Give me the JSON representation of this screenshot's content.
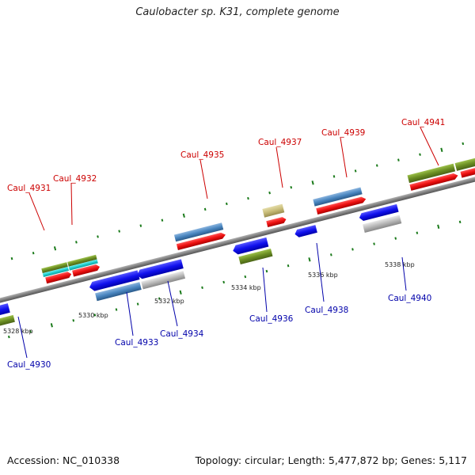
{
  "title": "Caulobacter sp. K31, complete genome",
  "footer": {
    "accession": "Accession: NC_010338",
    "stats": "Topology: circular; Length: 5,477,872 bp; Genes: 5,117"
  },
  "ticks": [
    {
      "label": "5328 kbp"
    },
    {
      "label": "5330 kbp"
    },
    {
      "label": "5332 kbp"
    },
    {
      "label": "5334 kbp"
    },
    {
      "label": "5336 kbp"
    },
    {
      "label": "5338 kbp"
    }
  ],
  "genes_top": [
    {
      "name": "Caul_4931"
    },
    {
      "name": "Caul_4932"
    },
    {
      "name": "Caul_4935"
    },
    {
      "name": "Caul_4937"
    },
    {
      "name": "Caul_4939"
    },
    {
      "name": "Caul_4941"
    }
  ],
  "genes_bottom": [
    {
      "name": "Caul_4930"
    },
    {
      "name": "Caul_4933"
    },
    {
      "name": "Caul_4934"
    },
    {
      "name": "Caul_4936"
    },
    {
      "name": "Caul_4938"
    },
    {
      "name": "Caul_4940"
    }
  ],
  "colors": {
    "forward_label": "#cc0000",
    "reverse_label": "#0000aa",
    "cds_forward": "#ee1111",
    "cds_reverse": "#1111ee",
    "gene_steelblue": "#4a86c0",
    "gene_olive": "#6b8e23",
    "gene_cyan": "#20d0d0",
    "gene_tan": "#c8bc78",
    "gene_gray": "#b8b8b8",
    "backbone": "#808080",
    "tick": "#1a7a1a"
  }
}
